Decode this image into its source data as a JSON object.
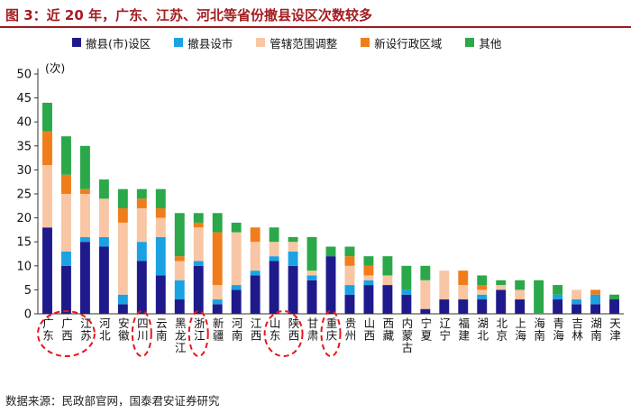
{
  "title": "图 3：近 20 年，广东、江苏、河北等省份撤县设区次数较多",
  "source": "数据来源：民政部官网，国泰君安证券研究",
  "colors": {
    "series": [
      "#1f1a8c",
      "#1aa2e3",
      "#f8c6a4",
      "#f07d1a",
      "#2aa84a"
    ],
    "highlight_circle": "#e8161b",
    "title": "#a31c21"
  },
  "chart_data": {
    "type": "bar",
    "stacked": true,
    "yunit": "(次)",
    "ylim": [
      0,
      50
    ],
    "yticks": [
      0,
      5,
      10,
      15,
      20,
      25,
      30,
      35,
      40,
      45,
      50
    ],
    "legend_position": "top",
    "categories": [
      "广东",
      "广西",
      "江苏",
      "河北",
      "安徽",
      "四川",
      "云南",
      "黑龙江",
      "浙江",
      "新疆",
      "河南",
      "江西",
      "山东",
      "陕西",
      "甘肃",
      "重庆",
      "贵州",
      "山西",
      "西藏",
      "内蒙古",
      "宁夏",
      "辽宁",
      "福建",
      "湖北",
      "北京",
      "上海",
      "海南",
      "青海",
      "吉林",
      "湖南",
      "天津"
    ],
    "series": [
      {
        "name": "撤县(市)设区",
        "values": [
          18,
          10,
          15,
          14,
          2,
          11,
          8,
          3,
          10,
          2,
          5,
          8,
          11,
          10,
          7,
          12,
          4,
          6,
          6,
          4,
          1,
          3,
          3,
          3,
          5,
          3,
          0,
          3,
          2,
          2,
          3
        ]
      },
      {
        "name": "撤县设市",
        "values": [
          0,
          3,
          1,
          2,
          2,
          4,
          8,
          4,
          1,
          1,
          1,
          1,
          1,
          3,
          1,
          0,
          2,
          1,
          0,
          1,
          0,
          0,
          0,
          1,
          0,
          0,
          0,
          1,
          1,
          2,
          0
        ]
      },
      {
        "name": "管辖范围调整",
        "values": [
          13,
          12,
          9,
          8,
          15,
          7,
          4,
          4,
          7,
          3,
          11,
          6,
          3,
          2,
          1,
          0,
          4,
          1,
          2,
          0,
          6,
          6,
          3,
          1,
          1,
          2,
          0,
          0,
          2,
          0,
          0
        ]
      },
      {
        "name": "新设行政区域",
        "values": [
          7,
          4,
          1,
          0,
          3,
          2,
          2,
          1,
          1,
          11,
          0,
          3,
          0,
          0,
          0,
          0,
          2,
          2,
          0,
          0,
          0,
          0,
          3,
          1,
          0,
          0,
          0,
          0,
          0,
          1,
          0
        ]
      },
      {
        "name": "其他",
        "values": [
          6,
          8,
          9,
          4,
          4,
          2,
          4,
          9,
          2,
          4,
          2,
          0,
          3,
          1,
          7,
          2,
          2,
          2,
          4,
          5,
          3,
          0,
          0,
          2,
          1,
          2,
          7,
          2,
          0,
          0,
          1
        ]
      }
    ],
    "highlighted_groups": [
      [
        "广东",
        "广西",
        "江苏"
      ],
      [
        "四川"
      ],
      [
        "浙江"
      ],
      [
        "山东",
        "陕西"
      ],
      [
        "重庆"
      ]
    ]
  }
}
